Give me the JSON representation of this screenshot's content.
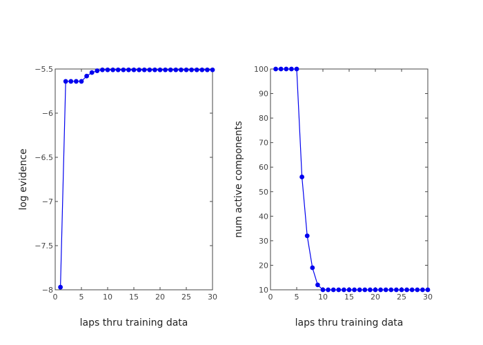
{
  "chart_data": [
    {
      "type": "line",
      "xlabel": "laps thru training data",
      "ylabel": "log evidence",
      "xlim": [
        0,
        30
      ],
      "ylim": [
        -8,
        -5.5
      ],
      "xticks": [
        0,
        5,
        10,
        15,
        20,
        25,
        30
      ],
      "xtick_labels": [
        "0",
        "5",
        "10",
        "15",
        "20",
        "25",
        "30"
      ],
      "yticks": [
        -8,
        -7.5,
        -7,
        -6.5,
        -6,
        -5.5
      ],
      "ytick_labels": [
        "−8",
        "−7.5",
        "−7",
        "−6.5",
        "−6",
        "−5.5"
      ],
      "x": [
        1,
        2,
        3,
        4,
        5,
        6,
        7,
        8,
        9,
        10,
        11,
        12,
        13,
        14,
        15,
        16,
        17,
        18,
        19,
        20,
        21,
        22,
        23,
        24,
        25,
        26,
        27,
        28,
        29,
        30
      ],
      "y": [
        -7.97,
        -5.64,
        -5.64,
        -5.64,
        -5.64,
        -5.58,
        -5.54,
        -5.52,
        -5.51,
        -5.51,
        -5.51,
        -5.51,
        -5.51,
        -5.51,
        -5.51,
        -5.51,
        -5.51,
        -5.51,
        -5.51,
        -5.51,
        -5.51,
        -5.51,
        -5.51,
        -5.51,
        -5.51,
        -5.51,
        -5.51,
        -5.51,
        -5.51,
        -5.51
      ],
      "grid": false,
      "color": "#0000ee"
    },
    {
      "type": "line",
      "xlabel": "laps thru training data",
      "ylabel": "num active components",
      "xlim": [
        0,
        30
      ],
      "ylim": [
        10,
        100
      ],
      "xticks": [
        0,
        5,
        10,
        15,
        20,
        25,
        30
      ],
      "xtick_labels": [
        "0",
        "5",
        "10",
        "15",
        "20",
        "25",
        "30"
      ],
      "yticks": [
        10,
        20,
        30,
        40,
        50,
        60,
        70,
        80,
        90,
        100
      ],
      "ytick_labels": [
        "10",
        "20",
        "30",
        "40",
        "50",
        "60",
        "70",
        "80",
        "90",
        "100"
      ],
      "x": [
        1,
        2,
        3,
        4,
        5,
        6,
        7,
        8,
        9,
        10,
        11,
        12,
        13,
        14,
        15,
        16,
        17,
        18,
        19,
        20,
        21,
        22,
        23,
        24,
        25,
        26,
        27,
        28,
        29,
        30
      ],
      "y": [
        100,
        100,
        100,
        100,
        100,
        56,
        32,
        19,
        12,
        10,
        10,
        10,
        10,
        10,
        10,
        10,
        10,
        10,
        10,
        10,
        10,
        10,
        10,
        10,
        10,
        10,
        10,
        10,
        10,
        10
      ],
      "grid": false,
      "color": "#0000ee"
    }
  ]
}
